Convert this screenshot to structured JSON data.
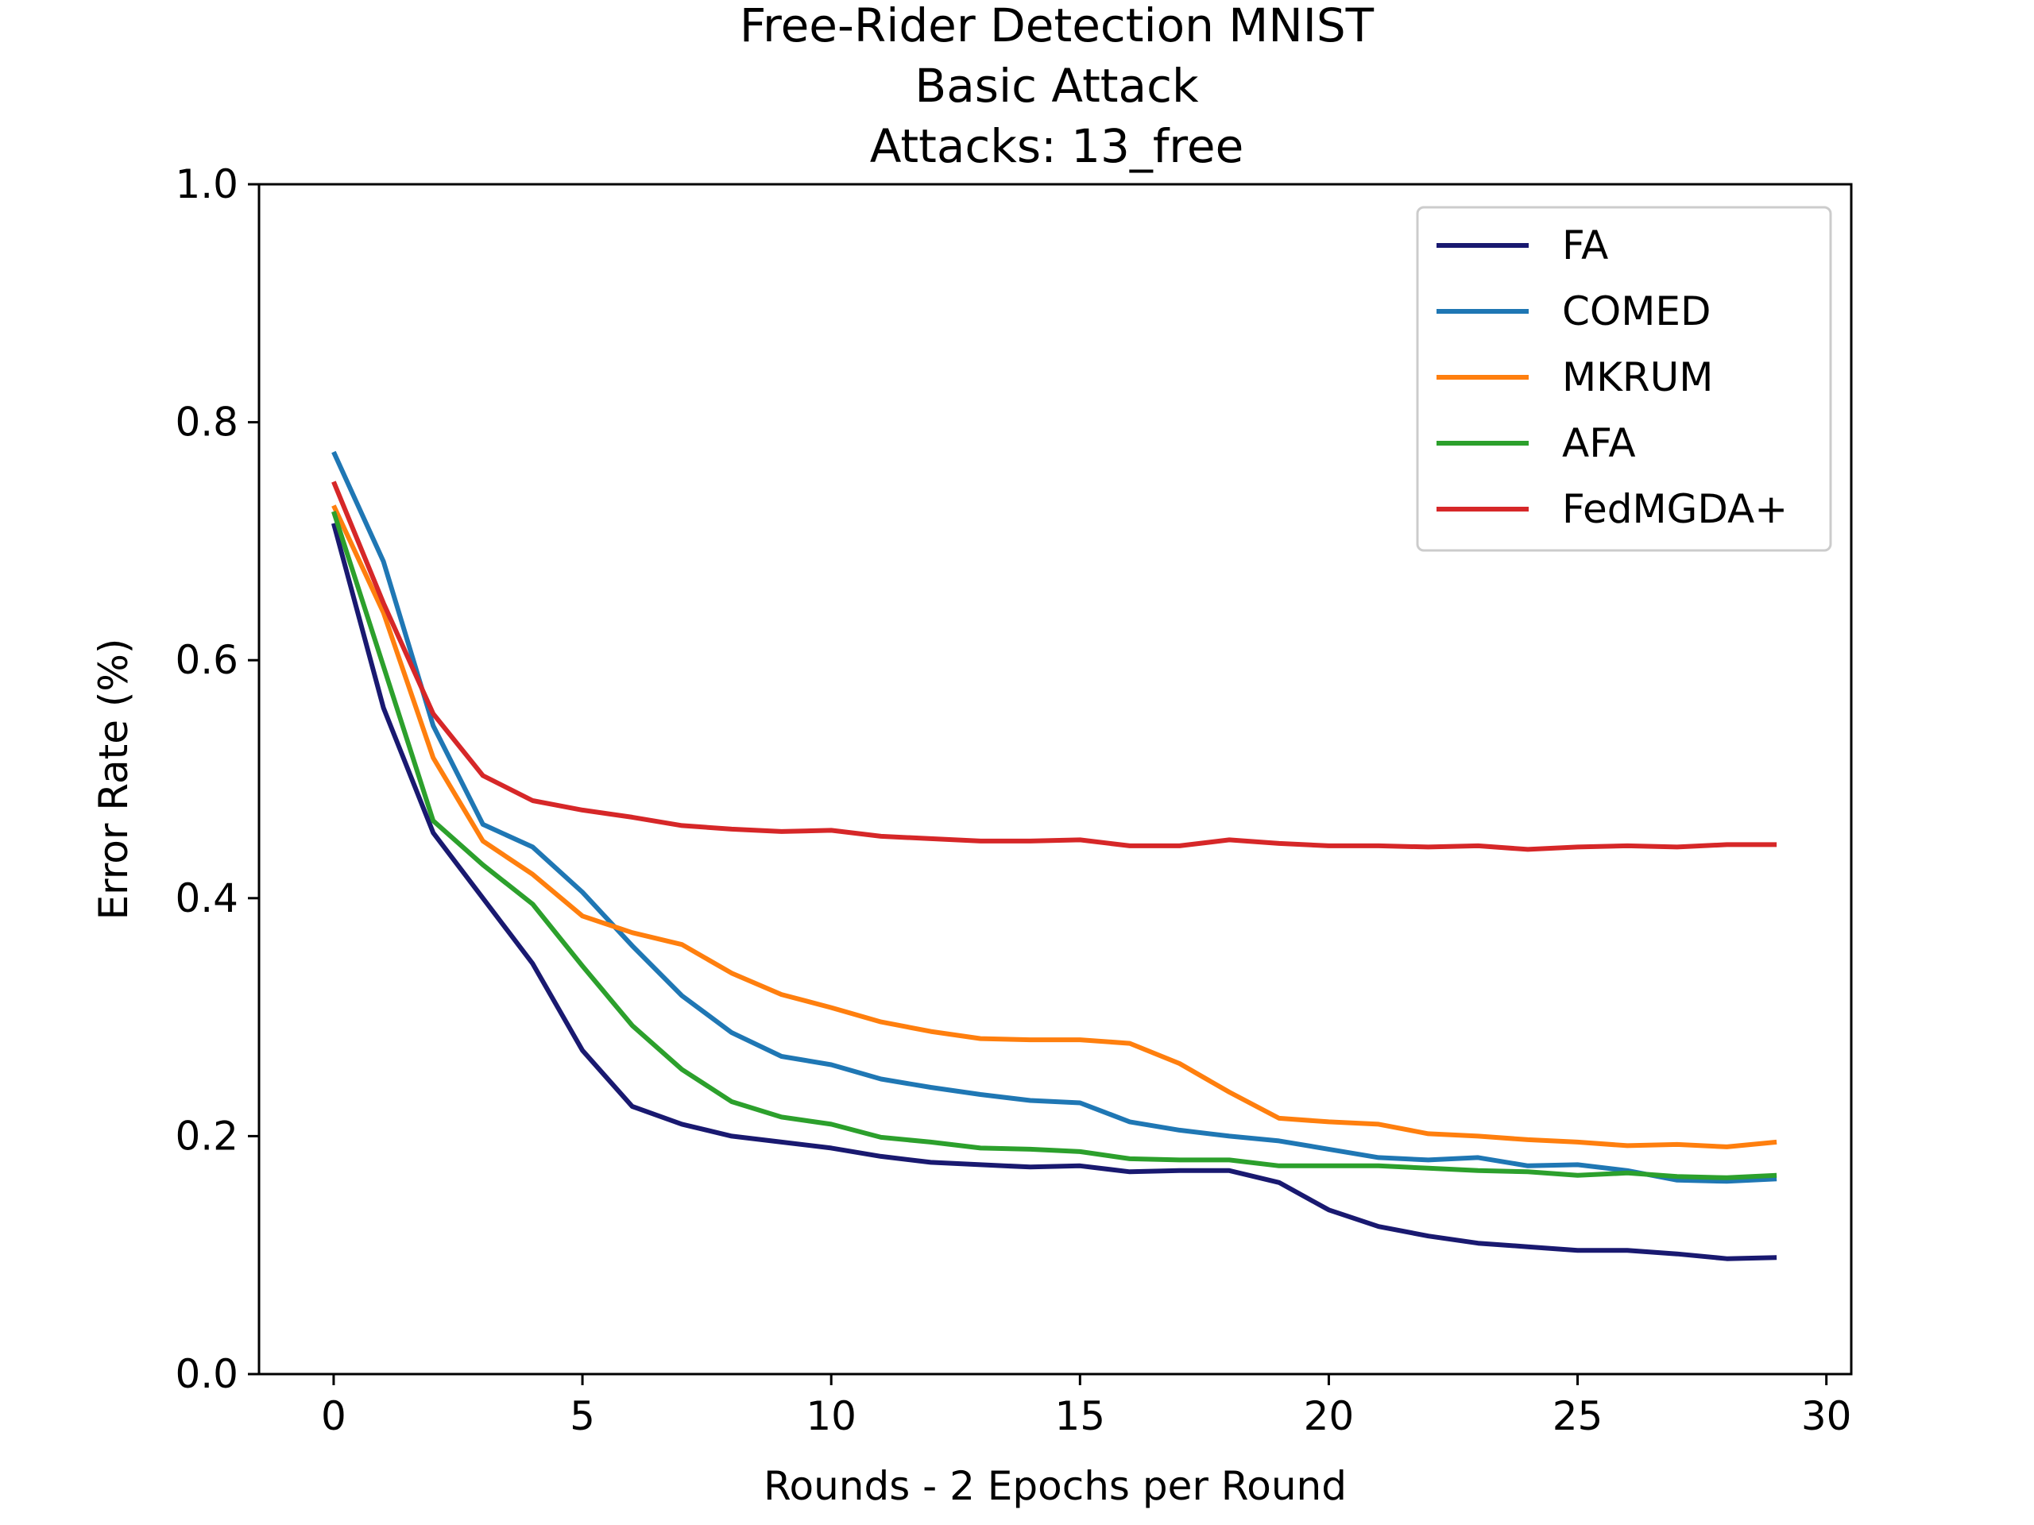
{
  "chart_data": {
    "type": "line",
    "title": [
      "Free-Rider Detection MNIST",
      "Basic Attack",
      "Attacks: 13_free"
    ],
    "xlabel": "Rounds - 2 Epochs per Round",
    "ylabel": "Error Rate (%)",
    "xlim": [
      -1.5,
      30.5
    ],
    "ylim": [
      0.0,
      1.0
    ],
    "xticks": [
      0,
      5,
      10,
      15,
      20,
      25,
      30
    ],
    "xtick_labels": [
      "0",
      "5",
      "10",
      "15",
      "20",
      "25",
      "30"
    ],
    "yticks": [
      0.0,
      0.2,
      0.4,
      0.6,
      0.8,
      1.0
    ],
    "ytick_labels": [
      "0.0",
      "0.2",
      "0.4",
      "0.6",
      "0.8",
      "1.0"
    ],
    "grid": false,
    "legend_position": "top-right",
    "x": [
      0,
      1,
      2,
      3,
      4,
      5,
      6,
      7,
      8,
      9,
      10,
      11,
      12,
      13,
      14,
      15,
      16,
      17,
      18,
      19,
      20,
      21,
      22,
      23,
      24,
      25,
      26,
      27,
      28,
      29
    ],
    "series": [
      {
        "name": "FA",
        "color": "#191970",
        "values": [
          0.715,
          0.56,
          0.455,
          0.4,
          0.345,
          0.272,
          0.225,
          0.21,
          0.2,
          0.195,
          0.19,
          0.183,
          0.178,
          0.176,
          0.174,
          0.175,
          0.17,
          0.171,
          0.171,
          0.161,
          0.138,
          0.124,
          0.116,
          0.11,
          0.107,
          0.104,
          0.104,
          0.101,
          0.097,
          0.098
        ]
      },
      {
        "name": "COMED",
        "color": "#1f77b4",
        "values": [
          0.775,
          0.683,
          0.545,
          0.462,
          0.443,
          0.405,
          0.36,
          0.318,
          0.287,
          0.267,
          0.26,
          0.248,
          0.241,
          0.235,
          0.23,
          0.228,
          0.212,
          0.205,
          0.2,
          0.196,
          0.189,
          0.182,
          0.18,
          0.182,
          0.175,
          0.176,
          0.171,
          0.163,
          0.162,
          0.164
        ]
      },
      {
        "name": "MKRUM",
        "color": "#ff7f0e",
        "values": [
          0.73,
          0.64,
          0.518,
          0.448,
          0.42,
          0.385,
          0.371,
          0.361,
          0.337,
          0.319,
          0.308,
          0.296,
          0.288,
          0.282,
          0.281,
          0.281,
          0.278,
          0.261,
          0.237,
          0.215,
          0.212,
          0.21,
          0.202,
          0.2,
          0.197,
          0.195,
          0.192,
          0.193,
          0.191,
          0.195
        ]
      },
      {
        "name": "AFA",
        "color": "#2ca02c",
        "values": [
          0.725,
          0.595,
          0.465,
          0.428,
          0.395,
          0.343,
          0.293,
          0.256,
          0.229,
          0.216,
          0.21,
          0.199,
          0.195,
          0.19,
          0.189,
          0.187,
          0.181,
          0.18,
          0.18,
          0.175,
          0.175,
          0.175,
          0.173,
          0.171,
          0.17,
          0.167,
          0.169,
          0.166,
          0.165,
          0.167
        ]
      },
      {
        "name": "FedMGDA+",
        "color": "#d62728",
        "values": [
          0.75,
          0.648,
          0.555,
          0.503,
          0.482,
          0.474,
          0.468,
          0.461,
          0.458,
          0.456,
          0.457,
          0.452,
          0.45,
          0.448,
          0.448,
          0.449,
          0.444,
          0.444,
          0.449,
          0.446,
          0.444,
          0.444,
          0.443,
          0.444,
          0.441,
          0.443,
          0.444,
          0.443,
          0.445,
          0.445
        ]
      }
    ]
  }
}
